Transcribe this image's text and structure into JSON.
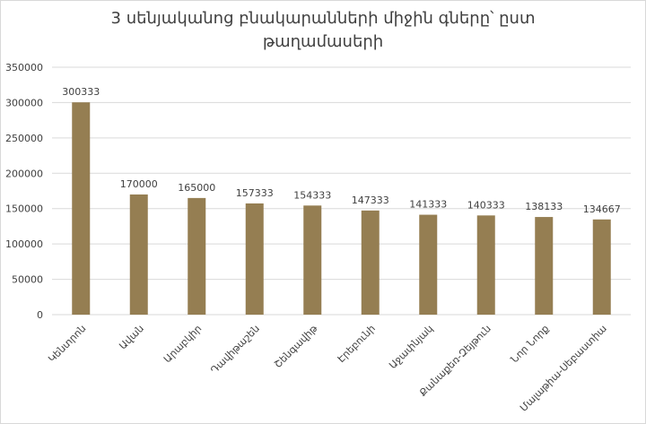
{
  "chart_data": {
    "type": "bar",
    "title": "3 սենյականոց բնակարանների միջին գները՝ ըստ թաղամասերի",
    "categories": [
      "Կենտրոն",
      "Ավան",
      "Արաբկիր",
      "Դավիթաշեն",
      "Շենգավիթ",
      "Էրեբունի",
      "Աջափնյակ",
      "Քանաքեռ-Զեյթուն",
      "Նոր Նորք",
      "Մալաթիա-Սեբաստիա"
    ],
    "values": [
      300333,
      170000,
      165000,
      157333,
      154333,
      147333,
      141333,
      140333,
      138133,
      134667
    ],
    "color": "#957e52",
    "ylim": [
      0,
      350000
    ],
    "yticks": [
      0,
      50000,
      100000,
      150000,
      200000,
      250000,
      300000,
      350000
    ],
    "grid": true
  }
}
